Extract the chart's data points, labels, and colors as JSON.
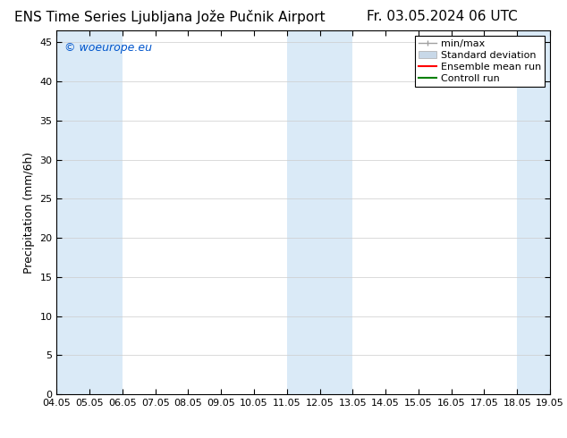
{
  "title_left": "ENS Time Series Ljubljana Jože Pučnik Airport",
  "title_right": "Fr. 03.05.2024 06 UTC",
  "ylabel": "Precipitation (mm/6h)",
  "watermark": "© woeurope.eu",
  "x_start": 4.05,
  "x_end": 19.05,
  "x_ticks": [
    4.05,
    5.05,
    6.05,
    7.05,
    8.05,
    9.05,
    10.05,
    11.05,
    12.05,
    13.05,
    14.05,
    15.05,
    16.05,
    17.05,
    18.05,
    19.05
  ],
  "x_tick_labels": [
    "04.05",
    "05.05",
    "06.05",
    "07.05",
    "08.05",
    "09.05",
    "10.05",
    "11.05",
    "12.05",
    "13.05",
    "14.05",
    "15.05",
    "16.05",
    "17.05",
    "18.05",
    "19.05"
  ],
  "ylim": [
    0,
    46.5
  ],
  "y_ticks": [
    0,
    5,
    10,
    15,
    20,
    25,
    30,
    35,
    40,
    45
  ],
  "shaded_regions": [
    [
      4.05,
      5.05
    ],
    [
      5.05,
      6.05
    ],
    [
      11.05,
      12.05
    ],
    [
      12.05,
      13.05
    ],
    [
      18.05,
      19.05
    ]
  ],
  "shade_color": "#daeaf7",
  "background_color": "#ffffff",
  "legend_labels": [
    "min/max",
    "Standard deviation",
    "Ensemble mean run",
    "Controll run"
  ],
  "minmax_color": "#a0a0a0",
  "stddev_color": "#c8d8e8",
  "ensemble_color": "#ff0000",
  "control_color": "#008000",
  "title_fontsize": 11,
  "tick_fontsize": 8,
  "ylabel_fontsize": 9,
  "watermark_color": "#0055cc",
  "watermark_fontsize": 9,
  "grid_color": "#cccccc",
  "legend_fontsize": 8
}
